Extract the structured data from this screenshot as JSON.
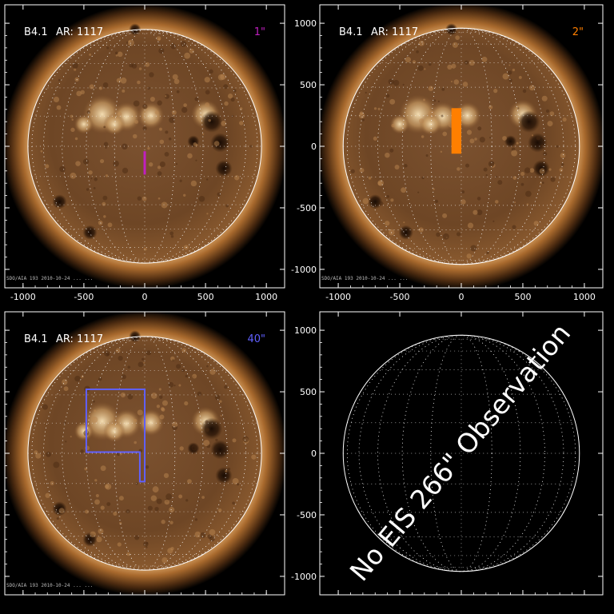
{
  "panels": [
    {
      "id": "p1",
      "flare_label": "B4.1",
      "region_label": "AR: 1117",
      "slit_label": "1\"",
      "slit_color": "#c020c0",
      "stamp": "SDO/AIA   193  2010-10-24  ...  ...",
      "has_image": true,
      "fov": [
        {
          "type": "slit",
          "x": 0,
          "y_top": -40,
          "y_bottom": -230
        }
      ]
    },
    {
      "id": "p2",
      "flare_label": "B4.1",
      "region_label": "AR: 1117",
      "slit_label": "2\"",
      "slit_color": "#ff7f00",
      "stamp": "SDO/AIA   193  2010-10-24  ...  ...",
      "has_image": true,
      "fov": [
        {
          "type": "rect",
          "x1": -80,
          "x2": 0,
          "y1": -60,
          "y2": 310
        }
      ]
    },
    {
      "id": "p3",
      "flare_label": "B4.1",
      "region_label": "AR: 1117",
      "slit_label": "40\"",
      "slit_color": "#6060ff",
      "stamp": "SDO/AIA   193  2010-10-24  ...  ...",
      "has_image": true,
      "fov": [
        {
          "type": "path",
          "points": [
            [
              -480,
              520
            ],
            [
              0,
              520
            ],
            [
              0,
              -230
            ],
            [
              -40,
              -230
            ],
            [
              -40,
              10
            ],
            [
              -480,
              10
            ]
          ]
        }
      ]
    },
    {
      "id": "p4",
      "has_image": false,
      "message": "No EIS 266\" Observation"
    }
  ],
  "axes": {
    "x_ticks": [
      -1000,
      -500,
      0,
      500,
      1000
    ],
    "y_ticks": [
      1000,
      500,
      0,
      -500,
      -1000
    ],
    "x_range": [
      -1150,
      1150
    ],
    "y_range": [
      -1150,
      1150
    ],
    "solar_radius": 960
  },
  "colors": {
    "corona_inner": "#c48a4a",
    "corona_outer": "#3a200c",
    "disk_base": "#6a4222",
    "axis": "#ffffff"
  }
}
